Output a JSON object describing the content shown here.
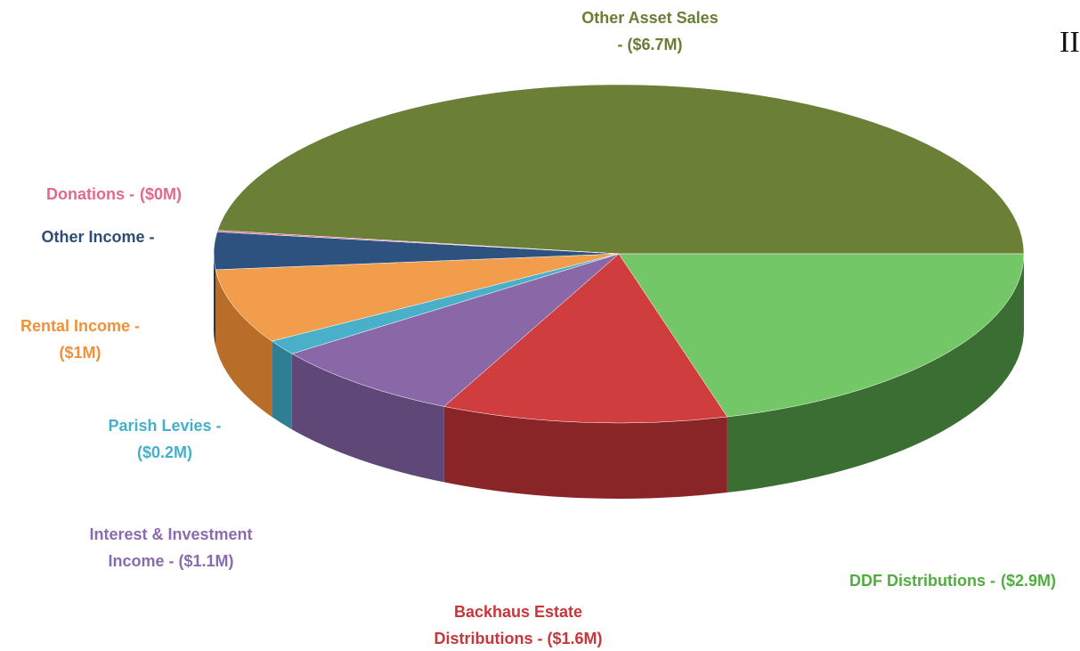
{
  "chart_data": {
    "type": "pie3d",
    "annotation": "II",
    "categories": [
      "Other Asset Sales",
      "DDF Distributions -",
      "Backhaus Estate",
      "Interest & Investment",
      "Parish Levies -",
      "Rental Income -",
      "Other Income -",
      "Donations -"
    ],
    "values": [
      6.7,
      2.9,
      1.6,
      1.1,
      0.2,
      1,
      0.5,
      0.02
    ],
    "value_labels": [
      "- ($6.7M)",
      "($2.9M)",
      "Distributions - ($1.6M)",
      "Income - ($1.1M)",
      "($0.2M)",
      "($1M)",
      null,
      "($0M)"
    ],
    "colors": [
      "#6b7f37",
      "#74c766",
      "#cf3d3e",
      "#8a68a8",
      "#4aafc9",
      "#f29d4b",
      "#2e527f",
      "#d8608a"
    ],
    "side_colors": [
      "#4f5e27",
      "#3a6e32",
      "#8a2527",
      "#5f4878",
      "#2f7f94",
      "#b86d28",
      "#1e3656",
      "#a04060"
    ],
    "label_colors": [
      "#6a7d35",
      "#4fae3e",
      "#c9363a",
      "#8a6bb0",
      "#45b0cc",
      "#f0913a",
      "#2c4d75",
      "#e06a8a"
    ]
  }
}
